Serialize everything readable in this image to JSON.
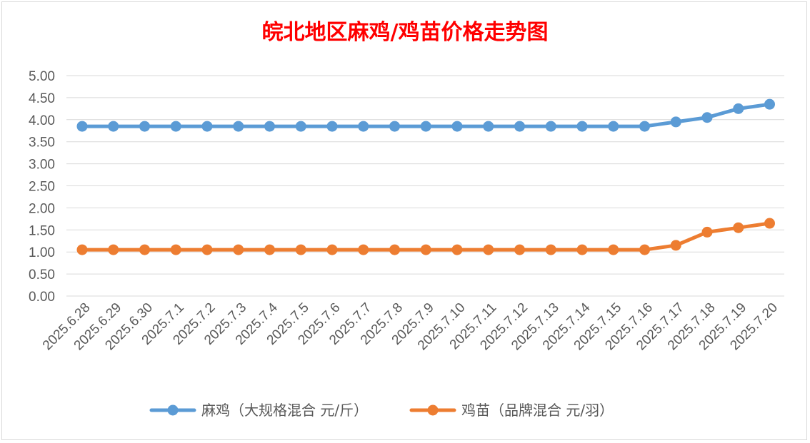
{
  "chart_data": {
    "type": "line",
    "title": "皖北地区麻鸡/鸡苗价格走势图",
    "categories": [
      "2025.6.28",
      "2025.6.29",
      "2025.6.30",
      "2025.7.1",
      "2025.7.2",
      "2025.7.3",
      "2025.7.4",
      "2025.7.5",
      "2025.7.6",
      "2025.7.7",
      "2025.7.8",
      "2025.7.9",
      "2025.7.10",
      "2025.7.11",
      "2025.7.12",
      "2025.7.13",
      "2025.7.14",
      "2025.7.15",
      "2025.7.16",
      "2025.7.17",
      "2025.7.18",
      "2025.7.19",
      "2025.7.20"
    ],
    "series": [
      {
        "name": "麻鸡（大规格混合 元/斤）",
        "color": "#5b9bd5",
        "values": [
          3.85,
          3.85,
          3.85,
          3.85,
          3.85,
          3.85,
          3.85,
          3.85,
          3.85,
          3.85,
          3.85,
          3.85,
          3.85,
          3.85,
          3.85,
          3.85,
          3.85,
          3.85,
          3.85,
          3.95,
          4.05,
          4.25,
          4.35
        ]
      },
      {
        "name": "鸡苗（品牌混合 元/羽）",
        "color": "#ed7d31",
        "values": [
          1.05,
          1.05,
          1.05,
          1.05,
          1.05,
          1.05,
          1.05,
          1.05,
          1.05,
          1.05,
          1.05,
          1.05,
          1.05,
          1.05,
          1.05,
          1.05,
          1.05,
          1.05,
          1.05,
          1.15,
          1.45,
          1.55,
          1.65
        ]
      }
    ],
    "yticks": [
      "0.00",
      "0.50",
      "1.00",
      "1.50",
      "2.00",
      "2.50",
      "3.00",
      "3.50",
      "4.00",
      "4.50",
      "5.00"
    ],
    "ylim": [
      0,
      5
    ],
    "grid": true,
    "legend": "bottom"
  }
}
